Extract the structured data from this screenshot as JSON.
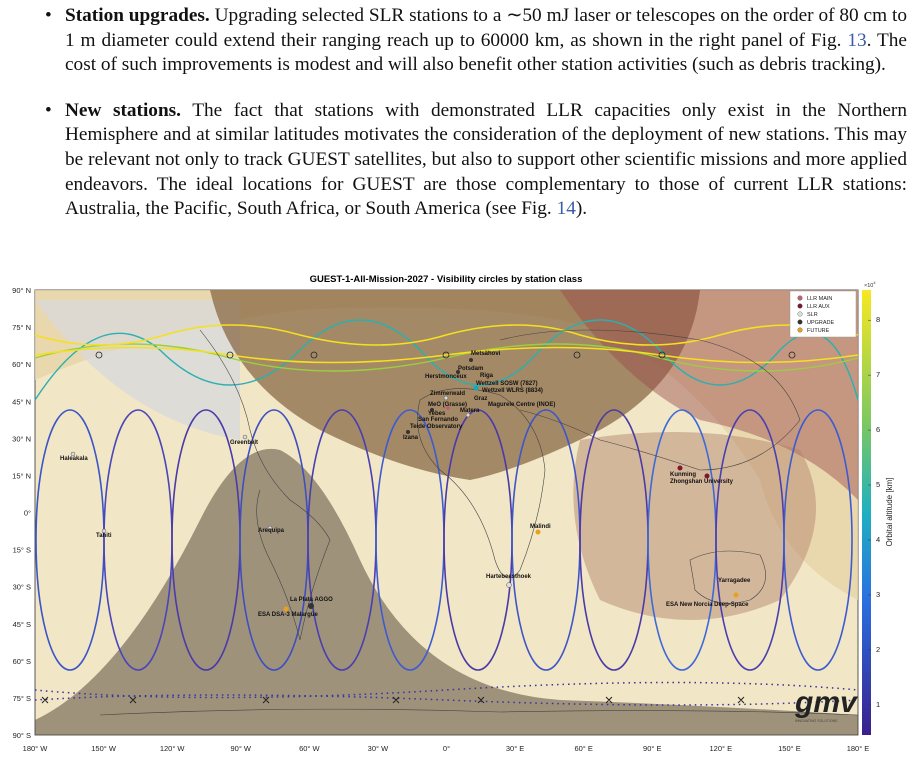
{
  "items": [
    {
      "lead": "Station upgrades.",
      "before": "Upgrading selected SLR stations to a ∼50 mJ laser or telescopes on the order of 80 cm to 1 m diameter could extend their ranging reach up to 60000 km, as shown in the right panel of Fig. ",
      "ref": "13",
      "after": ". The cost of such improvements is modest and will also benefit other station activities (such as debris tracking)."
    },
    {
      "lead": "New stations.",
      "before": "The fact that stations with demonstrated LLR capacities only exist in the Northern Hemisphere and at similar latitudes motivates the consideration of the deployment of new stations. This may be relevant not only to track GUEST satellites, but also to support other scientific missions and more applied endeavors. The ideal locations for GUEST are those complementary to those of current LLR stations: Australia, the Pacific, South Africa, or South America (see Fig. ",
      "ref": "14",
      "after": ")."
    }
  ],
  "figure": {
    "title": "GUEST-1-All-Mission-2027 - Visibility circles by station class",
    "lon_labels": [
      "180° W",
      "150° W",
      "120° W",
      "90° W",
      "60° W",
      "30° W",
      "0°",
      "30° E",
      "60° E",
      "90° E",
      "120° E",
      "150° E",
      "180° E"
    ],
    "lat_labels": [
      "90° N",
      "75° N",
      "60° N",
      "45° N",
      "30° N",
      "15° N",
      "0°",
      "15° S",
      "30° S",
      "45° S",
      "60° S",
      "75° S",
      "90° S"
    ],
    "legend": [
      "LLR MAIN",
      "LLR AUX",
      "SLR",
      "UPGRADE",
      "FUTURE"
    ],
    "colorbar": {
      "multiplier": "×10",
      "exponent": "4",
      "label": "Orbital altitude [km]",
      "ticks": [
        1,
        2,
        3,
        4,
        5,
        6,
        7,
        8
      ]
    },
    "stations": [
      "Metsähovi",
      "Potsdam",
      "Riga",
      "Herstmonceux",
      "Wettzell SOSW (7827)",
      "Wettzell WLRS (8834)",
      "Zimmerwald",
      "Graz",
      "MeO (Grasse)",
      "Magurele Centre (INOE)",
      "Matera",
      "Yebes",
      "San Fernando",
      "Teide Observatory",
      "Izana",
      "Greenbelt",
      "Haleakala",
      "Tahiti",
      "Arequipa",
      "La Plata AGGO",
      "ESA DSA-3 Malargüe",
      "Hartebeesthoek",
      "Malindi",
      "Yarragadee",
      "ESA New Norcia Deep-Space",
      "Kunming",
      "Zhongshan University"
    ],
    "logo": "gmv",
    "logo_tagline": "INNOVATING SOLUTIONS"
  }
}
